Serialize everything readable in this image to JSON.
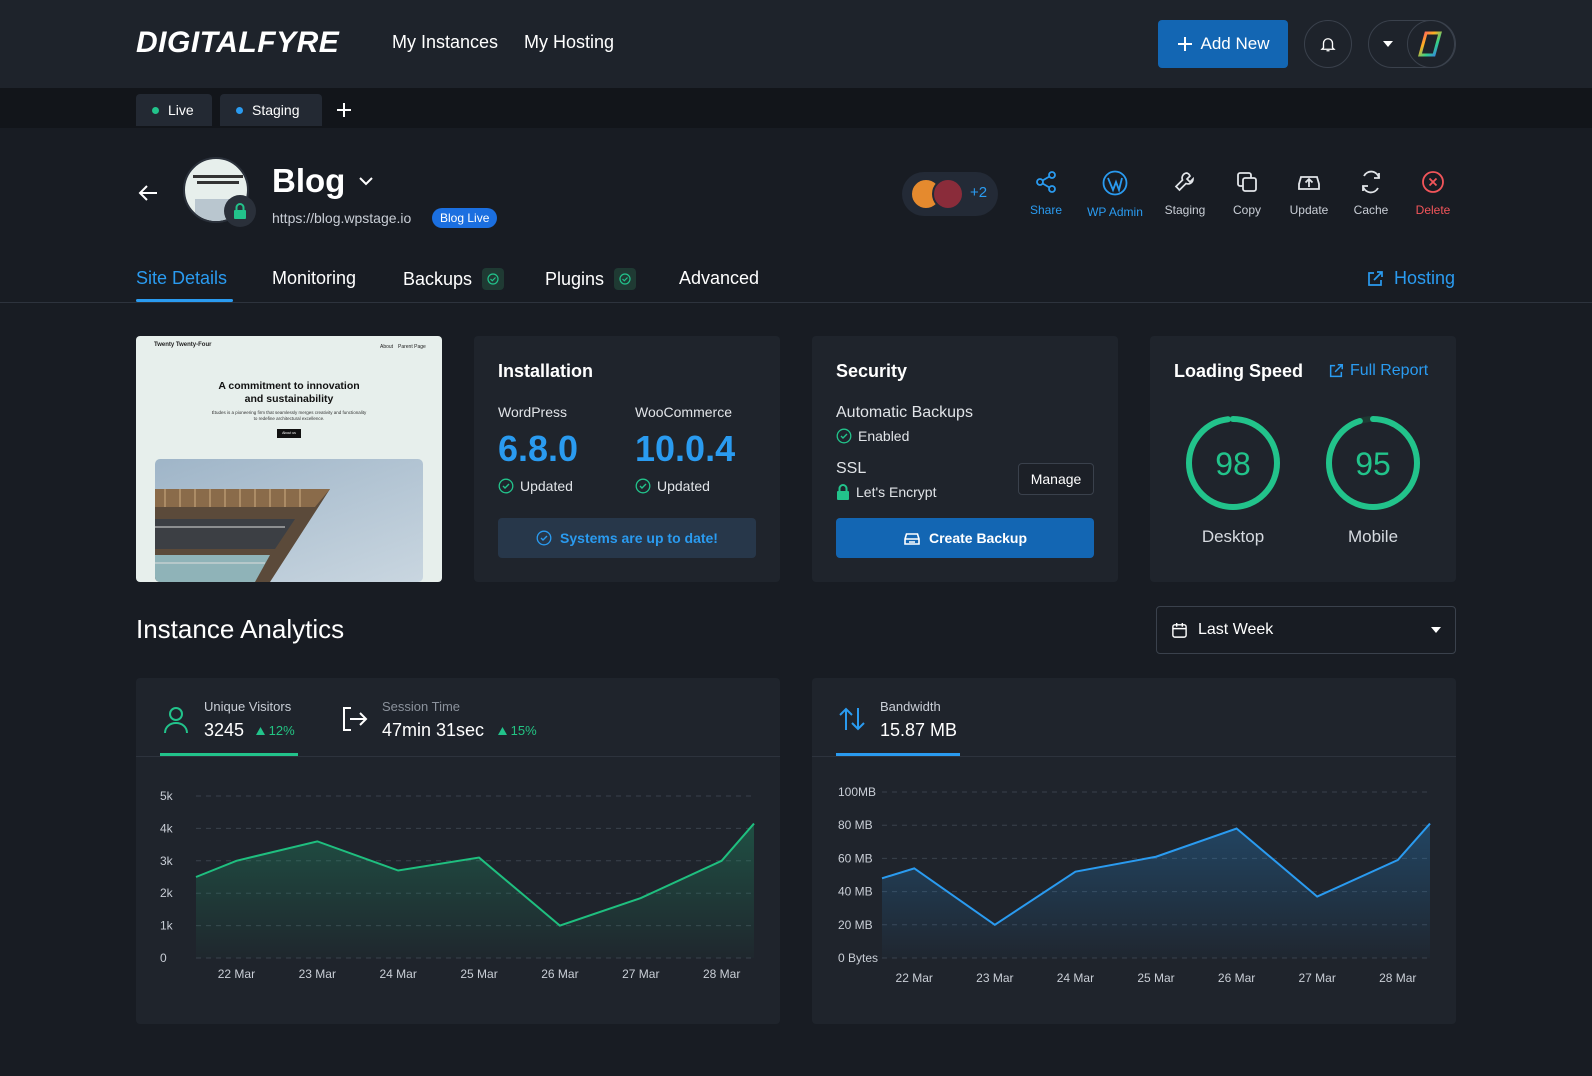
{
  "header": {
    "logo": "DIGITALFYRE",
    "nav": [
      "My Instances",
      "My Hosting"
    ],
    "add_new": "Add New"
  },
  "env_tabs": [
    {
      "label": "Live",
      "color": "#22c38b"
    },
    {
      "label": "Staging",
      "color": "#2a9bf0"
    }
  ],
  "site": {
    "title": "Blog",
    "url": "https://blog.wpstage.io",
    "badge": "Blog Live",
    "avatar_extra": "+2"
  },
  "actions": [
    {
      "label": "Share",
      "icon": "share-icon",
      "color": "#2a9bf0"
    },
    {
      "label": "WP Admin",
      "icon": "wordpress-icon",
      "color": "#2a9bf0"
    },
    {
      "label": "Staging",
      "icon": "wrench-icon",
      "color": "#c9ced6"
    },
    {
      "label": "Copy",
      "icon": "copy-icon",
      "color": "#c9ced6"
    },
    {
      "label": "Update",
      "icon": "update-icon",
      "color": "#c9ced6"
    },
    {
      "label": "Cache",
      "icon": "refresh-icon",
      "color": "#c9ced6"
    },
    {
      "label": "Delete",
      "icon": "close-circle-icon",
      "color": "#f2555a"
    }
  ],
  "tabs": {
    "site_details": "Site Details",
    "monitoring": "Monitoring",
    "backups": "Backups",
    "plugins": "Plugins",
    "advanced": "Advanced",
    "hosting": "Hosting"
  },
  "preview": {
    "brand": "Twenty Twenty-Four",
    "nav1": "About",
    "nav2": "Parent Page",
    "headline1": "A commitment to innovation",
    "headline2": "and sustainability",
    "body1": "Études is a pioneering firm that seamlessly merges creativity and functionality",
    "body2": "to redefine architectural excellence.",
    "button": "About us"
  },
  "installation": {
    "title": "Installation",
    "wp_label": "WordPress",
    "wp_version": "6.8.0",
    "wp_status": "Updated",
    "wc_label": "WooCommerce",
    "wc_version": "10.0.4",
    "wc_status": "Updated",
    "systems": "Systems are up to date!"
  },
  "security": {
    "title": "Security",
    "backups_label": "Automatic Backups",
    "backups_status": "Enabled",
    "ssl_label": "SSL",
    "ssl_value": "Let's Encrypt",
    "manage": "Manage",
    "create_backup": "Create Backup"
  },
  "speed": {
    "title": "Loading Speed",
    "full_report": "Full Report",
    "desktop": 98,
    "mobile": 95,
    "desktop_label": "Desktop",
    "mobile_label": "Mobile"
  },
  "analytics": {
    "title": "Instance Analytics",
    "range": "Last Week"
  },
  "visitors_panel": {
    "metric1_label": "Unique Visitors",
    "metric1_value": "3245",
    "metric1_change": "12%",
    "metric2_label": "Session Time",
    "metric2_value": "47min 31sec",
    "metric2_change": "15%"
  },
  "bandwidth_panel": {
    "metric_label": "Bandwidth",
    "metric_value": "15.87 MB"
  },
  "chart_data": [
    {
      "type": "area",
      "categories": [
        "22 Mar",
        "23 Mar",
        "24 Mar",
        "25 Mar",
        "26 Mar",
        "27 Mar",
        "28 Mar"
      ],
      "x": [
        21.5,
        22,
        23,
        24,
        25,
        26,
        27,
        28,
        28.4
      ],
      "values": [
        2500,
        3000,
        3600,
        2700,
        3100,
        1000,
        1850,
        3000,
        4150
      ],
      "yticks": [
        "0",
        "1k",
        "2k",
        "3k",
        "4k",
        "5k"
      ],
      "ylim": [
        0,
        5000
      ],
      "color": "#1fbf7f",
      "grid": true
    },
    {
      "type": "area",
      "categories": [
        "22 Mar",
        "23 Mar",
        "24 Mar",
        "25 Mar",
        "26 Mar",
        "27 Mar",
        "28 Mar"
      ],
      "x": [
        21.7,
        22.1,
        23.1,
        24.1,
        25.1,
        26.1,
        27.1,
        28.1,
        28.5
      ],
      "values": [
        48,
        54,
        20,
        52,
        61,
        78,
        37,
        59,
        81
      ],
      "yticks": [
        "0 Bytes",
        "20 MB",
        "40 MB",
        "60 MB",
        "80 MB",
        "100MB"
      ],
      "ylim": [
        0,
        100
      ],
      "color": "#2a9bf0",
      "grid": true
    }
  ]
}
